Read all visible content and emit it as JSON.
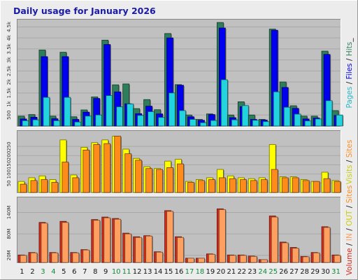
{
  "chart_data": {
    "type": "bar",
    "title": "Daily usage for January 2026",
    "colors": {
      "background": "#ececec",
      "panel": "#c0c0c0",
      "hits": "#2e7d5b",
      "files": "#0000ee",
      "pages": "#22d3e0",
      "visits": "#ffff00",
      "sites": "#ff8c1a",
      "volume": "#d62a1a",
      "in": "#ffa060",
      "out": "#cccc00",
      "weekend_label": "#11883a",
      "weekday_label": "#111111"
    },
    "days": [
      "1",
      "2",
      "3",
      "4",
      "5",
      "6",
      "7",
      "8",
      "9",
      "10",
      "11",
      "12",
      "13",
      "14",
      "15",
      "16",
      "17",
      "18",
      "19",
      "20",
      "21",
      "22",
      "23",
      "24",
      "25",
      "26",
      "27",
      "28",
      "29",
      "30",
      "31"
    ],
    "weekend_days": [
      "3",
      "4",
      "10",
      "11",
      "17",
      "18",
      "24",
      "25",
      "31"
    ],
    "panels": [
      {
        "id": "hits",
        "ymax": 4800,
        "ticks": [
          {
            "v": 500,
            "label": "500"
          },
          {
            "v": 1000,
            "label": "1k"
          },
          {
            "v": 1500,
            "label": "1.5k"
          },
          {
            "v": 2000,
            "label": "2k"
          },
          {
            "v": 2500,
            "label": "2.5k"
          },
          {
            "v": 3000,
            "label": "3k"
          },
          {
            "v": 3500,
            "label": "3.5k"
          },
          {
            "v": 4000,
            "label": "4k"
          },
          {
            "v": 4500,
            "label": "4.5k"
          }
        ],
        "side_label": [
          {
            "text": "Pages",
            "color": "#22b8c8"
          },
          {
            "text": " / ",
            "color": "#111111"
          },
          {
            "text": "Files",
            "color": "#0000ee"
          },
          {
            "text": " / ",
            "color": "#111111"
          },
          {
            "text": "Hits",
            "color": "#2e7d5b"
          },
          {
            "text": "_",
            "color": "#111111"
          }
        ],
        "series": [
          {
            "name": "Hits",
            "color": "#2e7d5b",
            "values": [
              450,
              520,
              3450,
              450,
              3350,
              420,
              730,
              1320,
              3900,
              1870,
              1910,
              790,
              1200,
              740,
              4200,
              1880,
              500,
              300,
              550,
              4700,
              500,
              1100,
              500,
              300,
              4400,
              2000,
              920,
              450,
              450,
              3400,
              700
            ]
          },
          {
            "name": "Files",
            "color": "#0000ee",
            "values": [
              320,
              400,
              3150,
              330,
              3150,
              300,
              630,
              1250,
              3700,
              1550,
              1010,
              560,
              900,
              550,
              4000,
              1850,
              420,
              260,
              520,
              4450,
              380,
              880,
              300,
              270,
              4350,
              1750,
              800,
              320,
              360,
              3250,
              480
            ]
          },
          {
            "name": "Pages",
            "color": "#22d3e0",
            "values": [
              240,
              280,
              1300,
              240,
              1300,
              180,
              450,
              500,
              1380,
              870,
              1000,
              480,
              650,
              390,
              1500,
              700,
              300,
              150,
              250,
              2100,
              280,
              930,
              260,
              200,
              1550,
              850,
              540,
              230,
              320,
              1150,
              500
            ]
          }
        ]
      },
      {
        "id": "visits",
        "ymax": 330,
        "ticks": [
          {
            "v": 50,
            "label": "50"
          },
          {
            "v": 100,
            "label": "100"
          },
          {
            "v": 150,
            "label": "150"
          },
          {
            "v": 200,
            "label": "200"
          },
          {
            "v": 250,
            "label": "250"
          }
        ],
        "side_label": [
          {
            "text": "Visits",
            "color": "#cccc00"
          },
          {
            "text": " / ",
            "color": "#111111"
          },
          {
            "text": "Sites",
            "color": "#ff8c1a"
          }
        ],
        "series": [
          {
            "name": "Visits",
            "color": "#ffff00",
            "values": [
              60,
              80,
              90,
              70,
              285,
              95,
              245,
              270,
              285,
              305,
              235,
              185,
              140,
              130,
              170,
              180,
              60,
              70,
              80,
              125,
              90,
              80,
              75,
              80,
              260,
              85,
              85,
              70,
              60,
              110,
              65
            ]
          },
          {
            "name": "Sites",
            "color": "#ff8c1a",
            "values": [
              45,
              65,
              70,
              55,
              165,
              80,
              230,
              260,
              265,
              305,
              210,
              175,
              130,
              125,
              135,
              155,
              55,
              65,
              70,
              80,
              75,
              70,
              65,
              70,
              125,
              80,
              80,
              65,
              60,
              75,
              60
            ]
          }
        ]
      },
      {
        "id": "volume",
        "ymax": 180,
        "ticks": [
          {
            "v": 20,
            "label": "20M"
          },
          {
            "v": 80,
            "label": "80M"
          },
          {
            "v": 140,
            "label": "140M"
          }
        ],
        "side_label": [
          {
            "text": "Volume",
            "color": "#d62a1a"
          },
          {
            "text": " / ",
            "color": "#111111"
          },
          {
            "text": "IN",
            "color": "#ffa060"
          },
          {
            "text": " / ",
            "color": "#111111"
          },
          {
            "text": "OUT",
            "color": "#cccc00"
          },
          {
            "text": " / ",
            "color": "#111111"
          },
          {
            "text": "Sites",
            "color": "#ff8c1a"
          }
        ],
        "series": [
          {
            "name": "Volume",
            "color": "#d62a1a",
            "values": [
              21,
              28,
              112,
              28,
              115,
              28,
              36,
              120,
              127,
              123,
              82,
              72,
              75,
              30,
              145,
              72,
              12,
              12,
              24,
              150,
              21,
              21,
              18,
              8,
              130,
              57,
              42,
              17,
              28,
              100,
              21
            ]
          },
          {
            "name": "IN",
            "color": "#ffa060",
            "values": [
              20,
              27,
              110,
              27,
              112,
              27,
              35,
              118,
              125,
              121,
              80,
              70,
              74,
              29,
              143,
              70,
              12,
              12,
              23,
              148,
              20,
              20,
              17,
              8,
              127,
              55,
              40,
              16,
              27,
              98,
              20
            ]
          }
        ]
      }
    ]
  }
}
